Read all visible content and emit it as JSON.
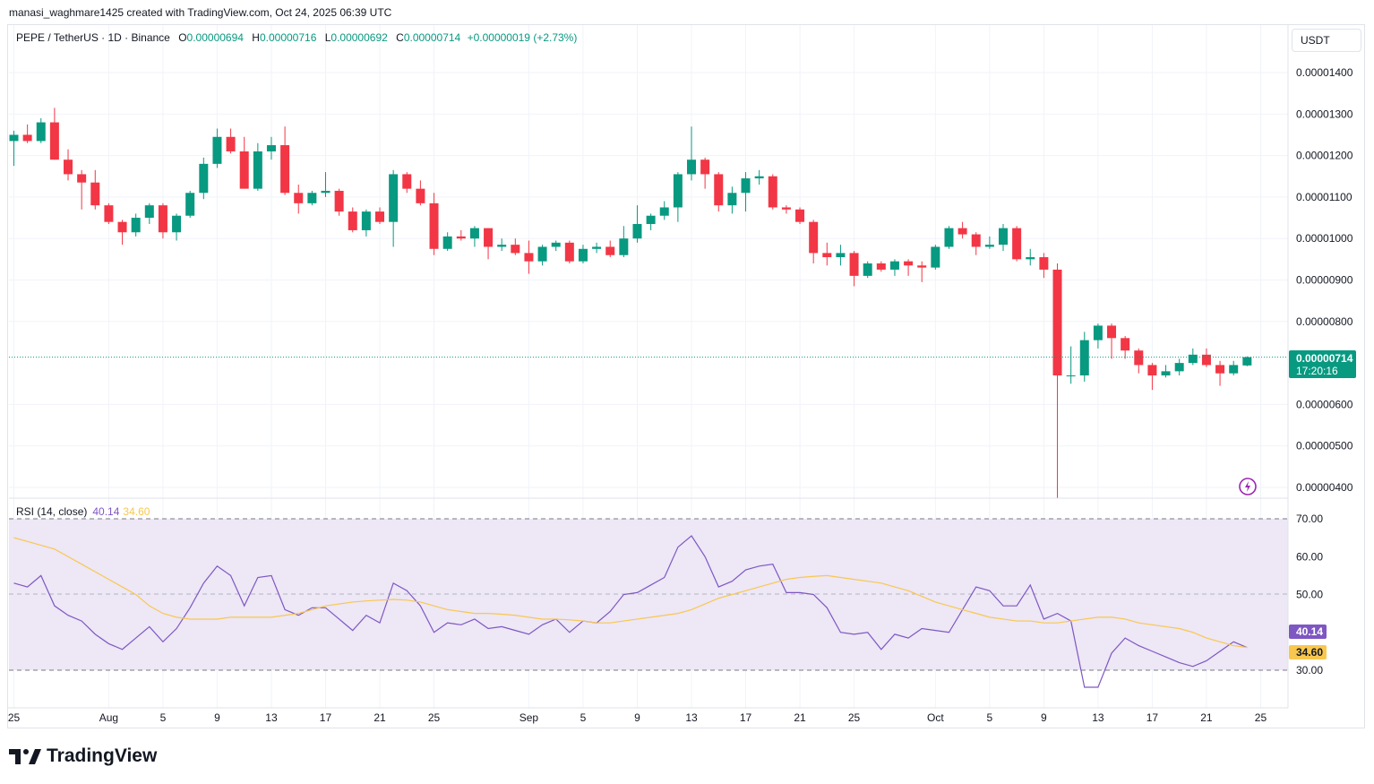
{
  "header": {
    "credit": "manasi_waghmare1425 created with TradingView.com, Oct 24, 2025 06:39 UTC"
  },
  "legend": {
    "symbol": "PEPE / TetherUS · 1D · Binance",
    "open_label": "O",
    "open": "0.00000694",
    "high_label": "H",
    "high": "0.00000716",
    "low_label": "L",
    "low": "0.00000692",
    "close_label": "C",
    "close": "0.00000714",
    "change": "+0.00000019 (+2.73%)"
  },
  "currency_button": "USDT",
  "rsi_legend": {
    "label": "RSI (14, close)",
    "rsi": "40.14",
    "ma": "34.60"
  },
  "price_tag": {
    "price": "0.00000714",
    "countdown": "17:20:16"
  },
  "rsi_tags": {
    "rsi": "40.14",
    "ma": "34.60"
  },
  "brand": {
    "name": "TradingView"
  },
  "colors": {
    "up": "#089981",
    "down": "#f23645",
    "rsi": "#7e57c2",
    "rsi_ma": "#f9c74f",
    "rsi_band": "#ede7f6",
    "grid": "#f0f3fa"
  },
  "icons": [
    "flash-icon",
    "tradingview-logo-icon"
  ],
  "chart_data": [
    {
      "type": "candlestick",
      "title": "PEPE / TetherUS · 1D · Binance",
      "ylim": [
        3.9e-06,
        1.48e-05
      ],
      "ytick_labels": [
        "0.00001400",
        "0.00001300",
        "0.00001200",
        "0.00001100",
        "0.00001000",
        "0.00000900",
        "0.00000800",
        "0.00000600",
        "0.00000500",
        "0.00000400"
      ],
      "yticks": [
        1.4e-05,
        1.3e-05,
        1.2e-05,
        1.1e-05,
        1e-05,
        9e-06,
        8e-06,
        6e-06,
        5e-06,
        4e-06
      ],
      "xtick_labels": [
        {
          "label": "25",
          "date": "2025-07-25"
        },
        {
          "label": "Aug",
          "date": "2025-08-01"
        },
        {
          "label": "5",
          "date": "2025-08-05"
        },
        {
          "label": "9",
          "date": "2025-08-09"
        },
        {
          "label": "13",
          "date": "2025-08-13"
        },
        {
          "label": "17",
          "date": "2025-08-17"
        },
        {
          "label": "21",
          "date": "2025-08-21"
        },
        {
          "label": "25",
          "date": "2025-08-25"
        },
        {
          "label": "Sep",
          "date": "2025-09-01"
        },
        {
          "label": "5",
          "date": "2025-09-05"
        },
        {
          "label": "9",
          "date": "2025-09-09"
        },
        {
          "label": "13",
          "date": "2025-09-13"
        },
        {
          "label": "17",
          "date": "2025-09-17"
        },
        {
          "label": "21",
          "date": "2025-09-21"
        },
        {
          "label": "25",
          "date": "2025-09-25"
        },
        {
          "label": "Oct",
          "date": "2025-10-01"
        },
        {
          "label": "5",
          "date": "2025-10-05"
        },
        {
          "label": "9",
          "date": "2025-10-09"
        },
        {
          "label": "13",
          "date": "2025-10-13"
        },
        {
          "label": "17",
          "date": "2025-10-17"
        },
        {
          "label": "21",
          "date": "2025-10-21"
        },
        {
          "label": "25",
          "date": "2025-10-25"
        }
      ],
      "candles": [
        {
          "date": "2025-07-25",
          "o": 12.35,
          "h": 12.6,
          "l": 11.75,
          "c": 12.5
        },
        {
          "date": "2025-07-26",
          "o": 12.5,
          "h": 12.75,
          "l": 12.3,
          "c": 12.35
        },
        {
          "date": "2025-07-27",
          "o": 12.35,
          "h": 12.9,
          "l": 12.3,
          "c": 12.8
        },
        {
          "date": "2025-07-28",
          "o": 12.8,
          "h": 13.15,
          "l": 11.9,
          "c": 11.9
        },
        {
          "date": "2025-07-29",
          "o": 11.9,
          "h": 12.15,
          "l": 11.4,
          "c": 11.55
        },
        {
          "date": "2025-07-30",
          "o": 11.55,
          "h": 11.65,
          "l": 10.7,
          "c": 11.35
        },
        {
          "date": "2025-07-31",
          "o": 11.35,
          "h": 11.65,
          "l": 10.7,
          "c": 10.8
        },
        {
          "date": "2025-08-01",
          "o": 10.8,
          "h": 10.85,
          "l": 10.35,
          "c": 10.4
        },
        {
          "date": "2025-08-02",
          "o": 10.4,
          "h": 10.45,
          "l": 9.85,
          "c": 10.15
        },
        {
          "date": "2025-08-03",
          "o": 10.15,
          "h": 10.6,
          "l": 10.05,
          "c": 10.5
        },
        {
          "date": "2025-08-04",
          "o": 10.5,
          "h": 10.85,
          "l": 10.35,
          "c": 10.8
        },
        {
          "date": "2025-08-05",
          "o": 10.8,
          "h": 10.85,
          "l": 10.0,
          "c": 10.15
        },
        {
          "date": "2025-08-06",
          "o": 10.15,
          "h": 10.6,
          "l": 9.95,
          "c": 10.55
        },
        {
          "date": "2025-08-07",
          "o": 10.55,
          "h": 11.15,
          "l": 10.5,
          "c": 11.1
        },
        {
          "date": "2025-08-08",
          "o": 11.1,
          "h": 11.95,
          "l": 10.95,
          "c": 11.8
        },
        {
          "date": "2025-08-09",
          "o": 11.8,
          "h": 12.65,
          "l": 11.7,
          "c": 12.45
        },
        {
          "date": "2025-08-10",
          "o": 12.45,
          "h": 12.65,
          "l": 12.05,
          "c": 12.1
        },
        {
          "date": "2025-08-11",
          "o": 12.1,
          "h": 12.45,
          "l": 11.2,
          "c": 11.2
        },
        {
          "date": "2025-08-12",
          "o": 11.2,
          "h": 12.3,
          "l": 11.15,
          "c": 12.1
        },
        {
          "date": "2025-08-13",
          "o": 12.1,
          "h": 12.45,
          "l": 11.9,
          "c": 12.25
        },
        {
          "date": "2025-08-14",
          "o": 12.25,
          "h": 12.7,
          "l": 11.05,
          "c": 11.1
        },
        {
          "date": "2025-08-15",
          "o": 11.1,
          "h": 11.3,
          "l": 10.6,
          "c": 10.85
        },
        {
          "date": "2025-08-16",
          "o": 10.85,
          "h": 11.15,
          "l": 10.8,
          "c": 11.1
        },
        {
          "date": "2025-08-17",
          "o": 11.1,
          "h": 11.6,
          "l": 11.0,
          "c": 11.15
        },
        {
          "date": "2025-08-18",
          "o": 11.15,
          "h": 11.2,
          "l": 10.55,
          "c": 10.65
        },
        {
          "date": "2025-08-19",
          "o": 10.65,
          "h": 10.75,
          "l": 10.15,
          "c": 10.2
        },
        {
          "date": "2025-08-20",
          "o": 10.2,
          "h": 10.7,
          "l": 10.05,
          "c": 10.65
        },
        {
          "date": "2025-08-21",
          "o": 10.65,
          "h": 10.75,
          "l": 10.35,
          "c": 10.4
        },
        {
          "date": "2025-08-22",
          "o": 10.4,
          "h": 11.65,
          "l": 9.8,
          "c": 11.55
        },
        {
          "date": "2025-08-23",
          "o": 11.55,
          "h": 11.6,
          "l": 11.1,
          "c": 11.2
        },
        {
          "date": "2025-08-24",
          "o": 11.2,
          "h": 11.4,
          "l": 10.8,
          "c": 10.85
        },
        {
          "date": "2025-08-25",
          "o": 10.85,
          "h": 11.1,
          "l": 9.6,
          "c": 9.75
        },
        {
          "date": "2025-08-26",
          "o": 9.75,
          "h": 10.15,
          "l": 9.7,
          "c": 10.05
        },
        {
          "date": "2025-08-27",
          "o": 10.05,
          "h": 10.2,
          "l": 9.95,
          "c": 10.0
        },
        {
          "date": "2025-08-28",
          "o": 10.0,
          "h": 10.3,
          "l": 9.8,
          "c": 10.25
        },
        {
          "date": "2025-08-29",
          "o": 10.25,
          "h": 10.25,
          "l": 9.5,
          "c": 9.8
        },
        {
          "date": "2025-08-30",
          "o": 9.8,
          "h": 10.0,
          "l": 9.7,
          "c": 9.85
        },
        {
          "date": "2025-08-31",
          "o": 9.85,
          "h": 10.0,
          "l": 9.6,
          "c": 9.65
        },
        {
          "date": "2025-09-01",
          "o": 9.65,
          "h": 9.95,
          "l": 9.15,
          "c": 9.45
        },
        {
          "date": "2025-09-02",
          "o": 9.45,
          "h": 9.85,
          "l": 9.35,
          "c": 9.8
        },
        {
          "date": "2025-09-03",
          "o": 9.8,
          "h": 9.95,
          "l": 9.7,
          "c": 9.9
        },
        {
          "date": "2025-09-04",
          "o": 9.9,
          "h": 9.95,
          "l": 9.4,
          "c": 9.45
        },
        {
          "date": "2025-09-05",
          "o": 9.45,
          "h": 9.85,
          "l": 9.4,
          "c": 9.75
        },
        {
          "date": "2025-09-06",
          "o": 9.75,
          "h": 9.9,
          "l": 9.65,
          "c": 9.8
        },
        {
          "date": "2025-09-07",
          "o": 9.8,
          "h": 9.95,
          "l": 9.55,
          "c": 9.6
        },
        {
          "date": "2025-09-08",
          "o": 9.6,
          "h": 10.3,
          "l": 9.55,
          "c": 10.0
        },
        {
          "date": "2025-09-09",
          "o": 10.0,
          "h": 10.8,
          "l": 9.9,
          "c": 10.35
        },
        {
          "date": "2025-09-10",
          "o": 10.35,
          "h": 10.6,
          "l": 10.2,
          "c": 10.55
        },
        {
          "date": "2025-09-11",
          "o": 10.55,
          "h": 10.9,
          "l": 10.45,
          "c": 10.75
        },
        {
          "date": "2025-09-12",
          "o": 10.75,
          "h": 11.6,
          "l": 10.4,
          "c": 11.55
        },
        {
          "date": "2025-09-13",
          "o": 11.55,
          "h": 12.7,
          "l": 11.4,
          "c": 11.9
        },
        {
          "date": "2025-09-14",
          "o": 11.9,
          "h": 11.95,
          "l": 11.2,
          "c": 11.55
        },
        {
          "date": "2025-09-15",
          "o": 11.55,
          "h": 11.6,
          "l": 10.65,
          "c": 10.8
        },
        {
          "date": "2025-09-16",
          "o": 10.8,
          "h": 11.25,
          "l": 10.6,
          "c": 11.1
        },
        {
          "date": "2025-09-17",
          "o": 11.1,
          "h": 11.6,
          "l": 10.65,
          "c": 11.45
        },
        {
          "date": "2025-09-18",
          "o": 11.45,
          "h": 11.65,
          "l": 11.3,
          "c": 11.5
        },
        {
          "date": "2025-09-19",
          "o": 11.5,
          "h": 11.55,
          "l": 10.7,
          "c": 10.75
        },
        {
          "date": "2025-09-20",
          "o": 10.75,
          "h": 10.8,
          "l": 10.6,
          "c": 10.7
        },
        {
          "date": "2025-09-21",
          "o": 10.7,
          "h": 10.75,
          "l": 10.35,
          "c": 10.4
        },
        {
          "date": "2025-09-22",
          "o": 10.4,
          "h": 10.45,
          "l": 9.4,
          "c": 9.65
        },
        {
          "date": "2025-09-23",
          "o": 9.65,
          "h": 9.9,
          "l": 9.35,
          "c": 9.55
        },
        {
          "date": "2025-09-24",
          "o": 9.55,
          "h": 9.85,
          "l": 9.35,
          "c": 9.65
        },
        {
          "date": "2025-09-25",
          "o": 9.65,
          "h": 9.7,
          "l": 8.85,
          "c": 9.1
        },
        {
          "date": "2025-09-26",
          "o": 9.1,
          "h": 9.45,
          "l": 9.05,
          "c": 9.4
        },
        {
          "date": "2025-09-27",
          "o": 9.4,
          "h": 9.45,
          "l": 9.2,
          "c": 9.25
        },
        {
          "date": "2025-09-28",
          "o": 9.25,
          "h": 9.5,
          "l": 9.1,
          "c": 9.45
        },
        {
          "date": "2025-09-29",
          "o": 9.45,
          "h": 9.5,
          "l": 9.1,
          "c": 9.35
        },
        {
          "date": "2025-09-30",
          "o": 9.35,
          "h": 9.45,
          "l": 8.95,
          "c": 9.3
        },
        {
          "date": "2025-10-01",
          "o": 9.3,
          "h": 9.85,
          "l": 9.25,
          "c": 9.8
        },
        {
          "date": "2025-10-02",
          "o": 9.8,
          "h": 10.3,
          "l": 9.75,
          "c": 10.25
        },
        {
          "date": "2025-10-03",
          "o": 10.25,
          "h": 10.4,
          "l": 10.0,
          "c": 10.1
        },
        {
          "date": "2025-10-04",
          "o": 10.1,
          "h": 10.15,
          "l": 9.6,
          "c": 9.8
        },
        {
          "date": "2025-10-05",
          "o": 9.8,
          "h": 10.05,
          "l": 9.75,
          "c": 9.85
        },
        {
          "date": "2025-10-06",
          "o": 9.85,
          "h": 10.35,
          "l": 9.7,
          "c": 10.25
        },
        {
          "date": "2025-10-07",
          "o": 10.25,
          "h": 10.3,
          "l": 9.45,
          "c": 9.5
        },
        {
          "date": "2025-10-08",
          "o": 9.5,
          "h": 9.75,
          "l": 9.35,
          "c": 9.55
        },
        {
          "date": "2025-10-09",
          "o": 9.55,
          "h": 9.65,
          "l": 9.05,
          "c": 9.25
        },
        {
          "date": "2025-10-10",
          "o": 9.25,
          "h": 9.4,
          "l": 3.75,
          "c": 6.7
        },
        {
          "date": "2025-10-11",
          "o": 6.7,
          "h": 7.4,
          "l": 6.5,
          "c": 6.7
        },
        {
          "date": "2025-10-12",
          "o": 6.7,
          "h": 7.75,
          "l": 6.55,
          "c": 7.55
        },
        {
          "date": "2025-10-13",
          "o": 7.55,
          "h": 7.95,
          "l": 7.35,
          "c": 7.9
        },
        {
          "date": "2025-10-14",
          "o": 7.9,
          "h": 7.95,
          "l": 7.1,
          "c": 7.6
        },
        {
          "date": "2025-10-15",
          "o": 7.6,
          "h": 7.65,
          "l": 7.1,
          "c": 7.3
        },
        {
          "date": "2025-10-16",
          "o": 7.3,
          "h": 7.35,
          "l": 6.75,
          "c": 6.95
        },
        {
          "date": "2025-10-17",
          "o": 6.95,
          "h": 7.0,
          "l": 6.35,
          "c": 6.7
        },
        {
          "date": "2025-10-18",
          "o": 6.7,
          "h": 6.95,
          "l": 6.65,
          "c": 6.8
        },
        {
          "date": "2025-10-19",
          "o": 6.8,
          "h": 7.1,
          "l": 6.7,
          "c": 7.0
        },
        {
          "date": "2025-10-20",
          "o": 7.0,
          "h": 7.35,
          "l": 6.95,
          "c": 7.2
        },
        {
          "date": "2025-10-21",
          "o": 7.2,
          "h": 7.35,
          "l": 6.9,
          "c": 6.95
        },
        {
          "date": "2025-10-22",
          "o": 6.95,
          "h": 7.05,
          "l": 6.45,
          "c": 6.75
        },
        {
          "date": "2025-10-23",
          "o": 6.75,
          "h": 7.05,
          "l": 6.7,
          "c": 6.95
        },
        {
          "date": "2025-10-24",
          "o": 6.94,
          "h": 7.16,
          "l": 6.92,
          "c": 7.14
        }
      ],
      "candle_unit": "1e-6 USDT",
      "last_price": 7.14e-06
    },
    {
      "type": "line",
      "title": "RSI (14, close)",
      "ylim": [
        25,
        72
      ],
      "yticks": [
        70,
        60,
        50,
        30
      ],
      "ytick_labels": [
        "70.00",
        "60.00",
        "50.00",
        "30.00"
      ],
      "band": [
        30,
        70
      ],
      "midline": 50,
      "series": [
        {
          "name": "RSI",
          "values": [
            53,
            52,
            55,
            47,
            44.5,
            43,
            39.5,
            37,
            35.5,
            38.5,
            41.5,
            37.5,
            41,
            46.5,
            53,
            57.5,
            55,
            47,
            54.5,
            55,
            46,
            44.5,
            46.5,
            46.5,
            43.5,
            40.5,
            44.5,
            42.5,
            53,
            51,
            47,
            40,
            42.5,
            42,
            43.5,
            41,
            41.5,
            40.5,
            39.5,
            42,
            43.5,
            40,
            43,
            42.5,
            45.5,
            50,
            50.5,
            52.5,
            54.5,
            62.5,
            65.5,
            60,
            52,
            53.5,
            56.5,
            57.5,
            58,
            50.5,
            50.5,
            50,
            46.5,
            40,
            39.5,
            40,
            35.5,
            39.5,
            38.5,
            41,
            40.5,
            40,
            46,
            52,
            51,
            47,
            47,
            52.5,
            43.5,
            45,
            43,
            25.5,
            25.5,
            34.5,
            38.5,
            36.5,
            35,
            33.5,
            32,
            31,
            32.5,
            35,
            37.5,
            36,
            34.5,
            38,
            40.14
          ]
        },
        {
          "name": "RSI-based MA",
          "values": [
            65,
            64,
            63,
            62,
            60,
            58,
            56,
            54,
            52,
            50,
            47,
            45,
            44,
            43.5,
            43.5,
            43.5,
            44,
            44,
            44,
            44,
            44.5,
            45,
            46,
            47,
            47.5,
            48,
            48.3,
            48.5,
            48.7,
            48.5,
            48,
            47,
            46,
            45.5,
            45,
            45,
            44.8,
            44.5,
            44,
            43.5,
            43.5,
            43.3,
            43,
            42.5,
            42.5,
            43,
            43.5,
            44,
            44.5,
            45,
            46,
            47.5,
            49,
            50,
            51,
            52,
            53,
            54,
            54.5,
            54.8,
            55,
            54.5,
            54,
            53.5,
            53,
            52,
            51,
            49.5,
            48,
            47,
            46,
            45,
            44,
            43.5,
            43,
            43,
            42.5,
            42.5,
            43,
            43.5,
            44,
            44,
            43.5,
            42.5,
            42,
            41.5,
            41,
            40,
            38.5,
            37.5,
            36.5,
            36,
            35.5,
            35,
            34.5,
            34.6
          ]
        }
      ]
    }
  ]
}
